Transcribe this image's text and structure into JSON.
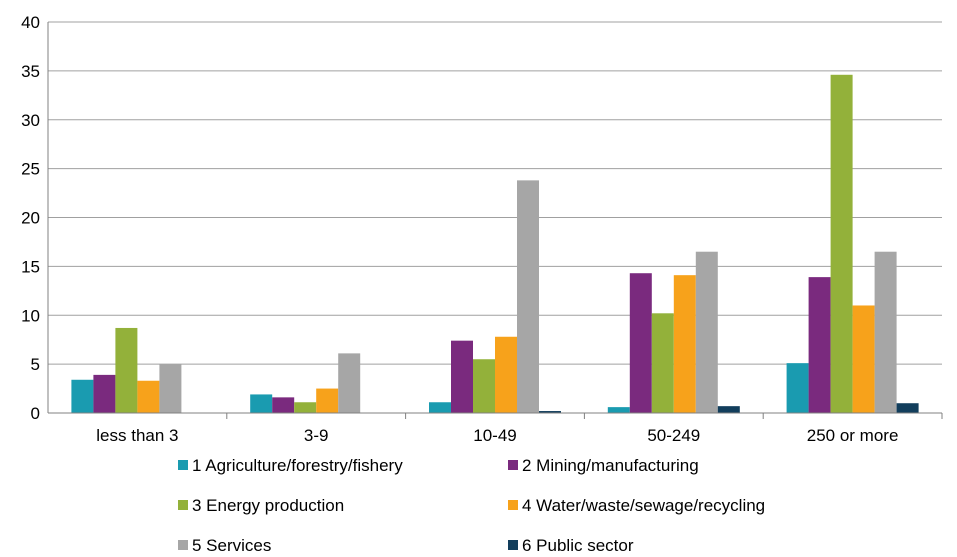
{
  "chart_data": {
    "type": "bar",
    "title": "",
    "xlabel": "",
    "ylabel": "",
    "ylim": [
      0,
      40
    ],
    "yticks": [
      0,
      5,
      10,
      15,
      20,
      25,
      30,
      35,
      40
    ],
    "grid": true,
    "legend_position": "bottom",
    "categories": [
      "less than 3",
      "3-9",
      "10-49",
      "50-249",
      "250 or more"
    ],
    "series": [
      {
        "name": "1 Agriculture/forestry/fishery",
        "color": "#1a9bb0",
        "values": [
          3.4,
          1.9,
          1.1,
          0.6,
          5.1
        ]
      },
      {
        "name": "2 Mining/manufacturing",
        "color": "#7a2a7e",
        "values": [
          3.9,
          1.6,
          7.4,
          14.3,
          13.9
        ]
      },
      {
        "name": "3 Energy production",
        "color": "#93b13a",
        "values": [
          8.7,
          1.1,
          5.5,
          10.2,
          34.6
        ]
      },
      {
        "name": "4 Water/waste/sewage/recycling",
        "color": "#f7a21b",
        "values": [
          3.3,
          2.5,
          7.8,
          14.1,
          11.0
        ]
      },
      {
        "name": "5 Services",
        "color": "#a6a6a6",
        "values": [
          5.0,
          6.1,
          23.8,
          16.5,
          16.5
        ]
      },
      {
        "name": "6 Public sector",
        "color": "#123e5c",
        "values": [
          0.0,
          0.0,
          0.2,
          0.7,
          1.0
        ]
      }
    ]
  }
}
